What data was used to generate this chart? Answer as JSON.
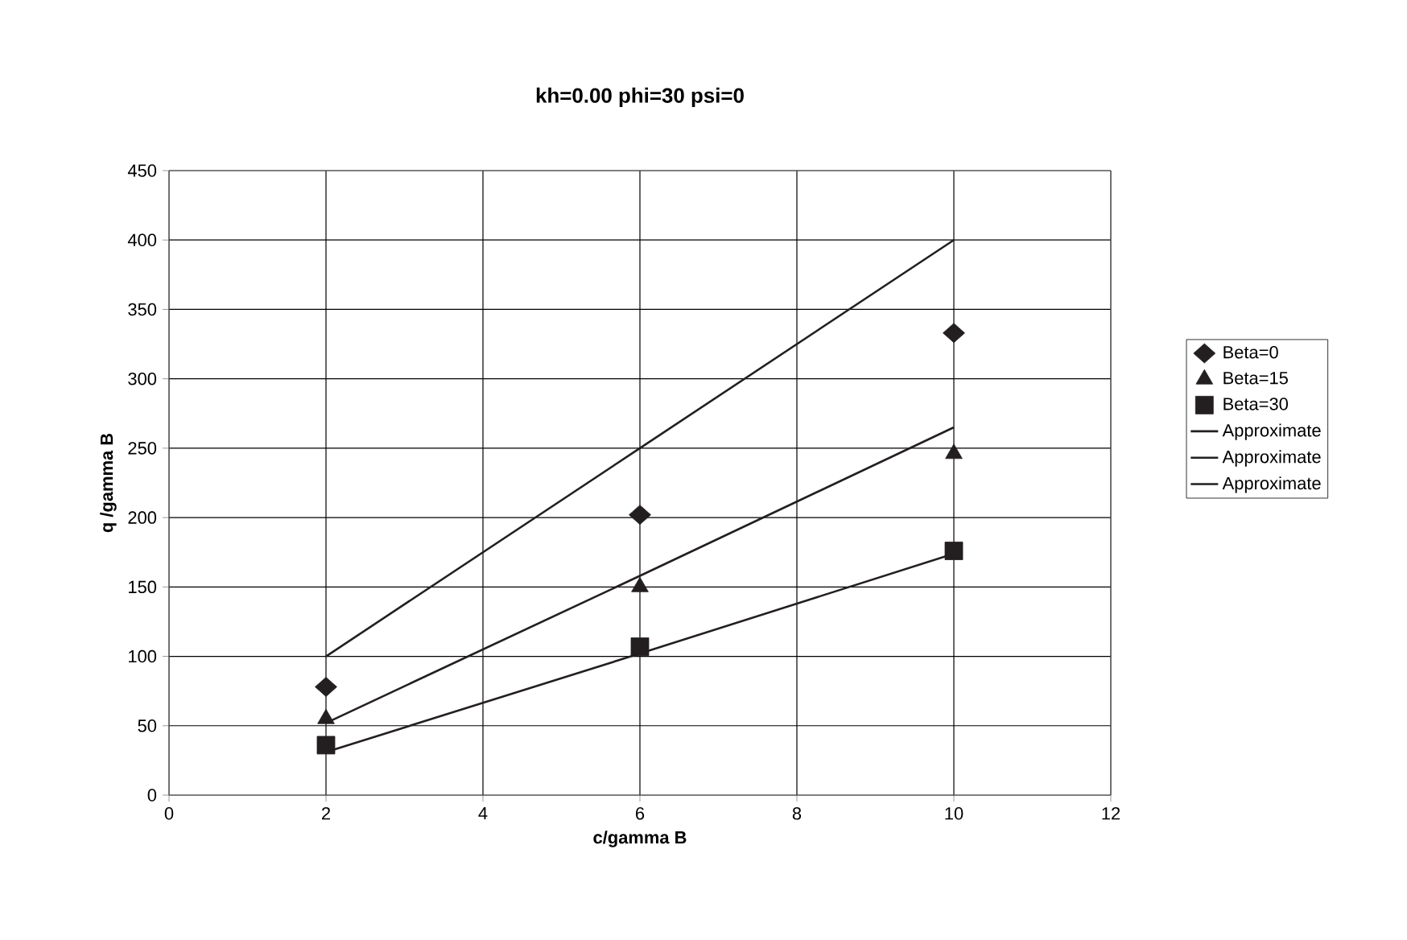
{
  "chart_data": {
    "type": "scatter",
    "title": "kh=0.00 phi=30 psi=0",
    "xlabel": "c/gamma B",
    "ylabel": "q /gamma B",
    "x": [
      2,
      6,
      10
    ],
    "series": [
      {
        "name": "Beta=0",
        "marker": "diamond",
        "color": "#231f20",
        "values": [
          78,
          202,
          333
        ]
      },
      {
        "name": "Beta=15",
        "marker": "triangle",
        "color": "#231f20",
        "values": [
          55,
          150,
          246
        ]
      },
      {
        "name": "Beta=30",
        "marker": "square",
        "color": "#231f20",
        "values": [
          36,
          107,
          176
        ]
      },
      {
        "name": "Approximate",
        "type": "line",
        "line_style": "solid",
        "color": "#231f20",
        "values": [
          100,
          250,
          400
        ]
      },
      {
        "name": "Approximate",
        "type": "line",
        "line_style": "solid",
        "color": "#231f20",
        "values": [
          52,
          158,
          265
        ]
      },
      {
        "name": "Approximate",
        "type": "line",
        "line_style": "solid",
        "color": "#231f20",
        "values": [
          31,
          102,
          174
        ]
      }
    ],
    "xlim": [
      0,
      12
    ],
    "xticks": [
      0,
      2,
      4,
      6,
      8,
      10,
      12
    ],
    "ylim": [
      0,
      450
    ],
    "yticks": [
      0,
      50,
      100,
      150,
      200,
      250,
      300,
      350,
      400,
      450
    ],
    "grid": true,
    "legend": "right"
  }
}
